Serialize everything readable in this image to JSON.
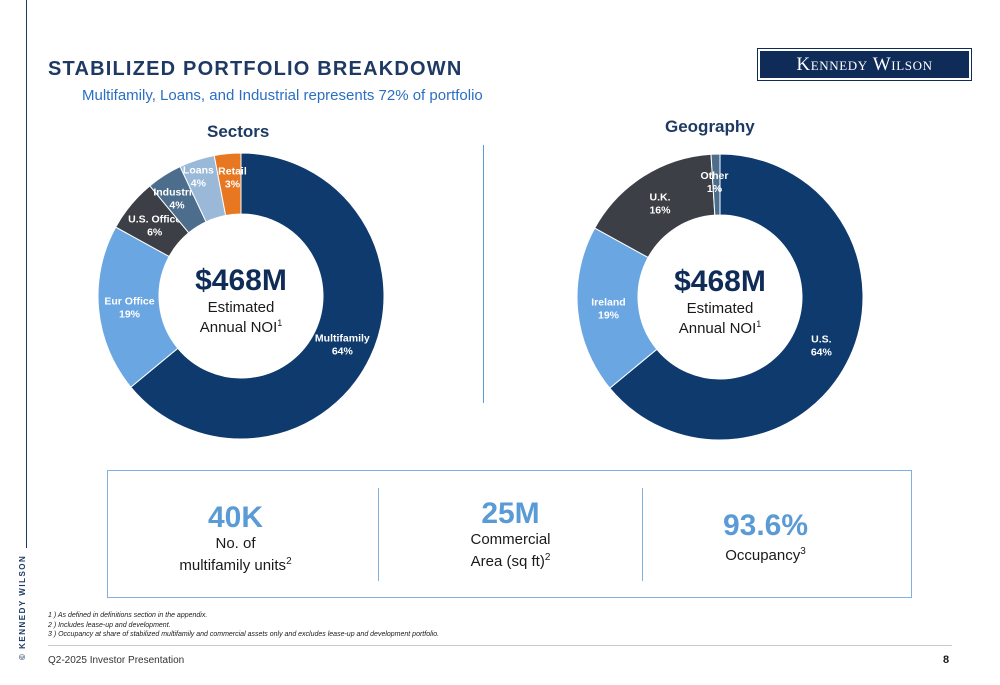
{
  "page": {
    "title": "STABILIZED PORTFOLIO BREAKDOWN",
    "subtitle": "Multifamily, Loans, and Industrial represents 72% of portfolio",
    "logo_text": "Kennedy Wilson",
    "side_copyright": "© KENNEDY WILSON",
    "footer": "Q2-2025 Investor Presentation",
    "page_number": "8"
  },
  "chart_data": [
    {
      "type": "pie",
      "title": "Sectors",
      "center": {
        "value": "$468M",
        "line1": "Estimated",
        "line2": "Annual NOI",
        "sup": "1"
      },
      "slices": [
        {
          "name": "Multifamily",
          "value": 64,
          "label": "64%",
          "color": "#0f3a6d"
        },
        {
          "name": "Eur Office",
          "value": 19,
          "label": "19%",
          "color": "#6aa6e2"
        },
        {
          "name": "U.S. Office",
          "value": 6,
          "label": "6%",
          "color": "#3c3f45"
        },
        {
          "name": "Industrial",
          "value": 4,
          "label": "4%",
          "color": "#4d6d8c"
        },
        {
          "name": "Loans",
          "value": 4,
          "label": "4%",
          "color": "#9ab8d8"
        },
        {
          "name": "Retail",
          "value": 3,
          "label": "3%",
          "color": "#e87722"
        }
      ]
    },
    {
      "type": "pie",
      "title": "Geography",
      "center": {
        "value": "$468M",
        "line1": "Estimated",
        "line2": "Annual NOI",
        "sup": "1"
      },
      "slices": [
        {
          "name": "U.S.",
          "value": 64,
          "label": "64%",
          "color": "#0f3a6d"
        },
        {
          "name": "Ireland",
          "value": 19,
          "label": "19%",
          "color": "#6aa6e2"
        },
        {
          "name": "U.K.",
          "value": 16,
          "label": "16%",
          "color": "#3c3f45"
        },
        {
          "name": "Other",
          "value": 1,
          "label": "1%",
          "color": "#4d6d8c"
        }
      ]
    }
  ],
  "stats": [
    {
      "value": "40K",
      "line1": "No. of",
      "line2": "multifamily units",
      "sup": "2"
    },
    {
      "value": "25M",
      "line1": "Commercial",
      "line2": "Area (sq ft)",
      "sup": "2"
    },
    {
      "value": "93.6%",
      "line1": "",
      "line2": "Occupancy",
      "sup": "3"
    }
  ],
  "footnotes": [
    "1 ) As defined in definitions section in the appendix.",
    "2 ) Includes lease-up and development.",
    "3 ) Occupancy at share of stabilized multifamily and commercial assets only and excludes lease-up and development portfolio."
  ]
}
